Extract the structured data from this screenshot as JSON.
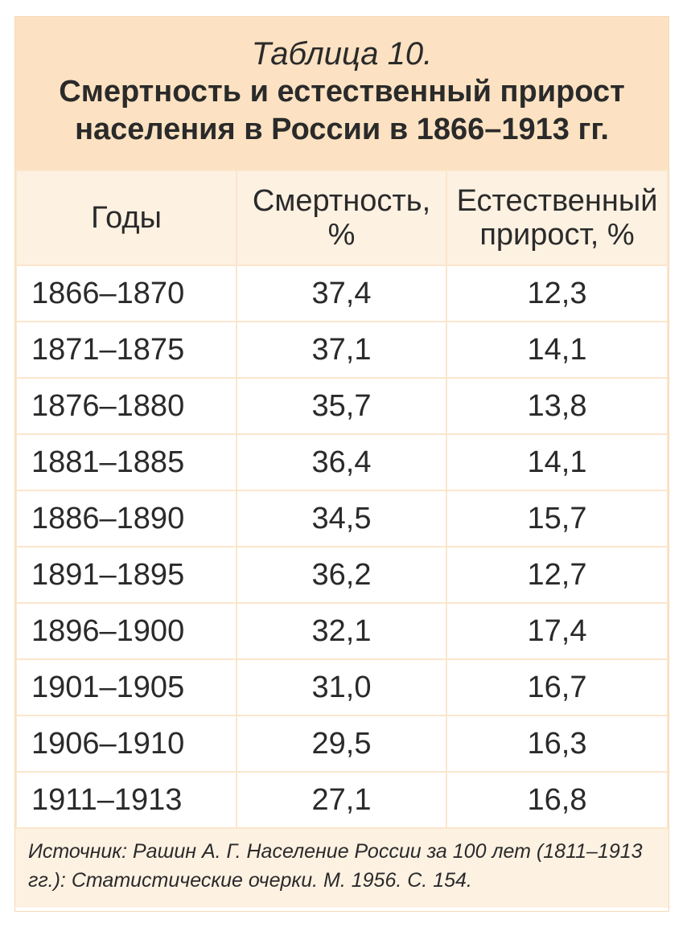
{
  "header": {
    "label": "Таблица 10.",
    "title_lines": [
      "Смертность и естественный прирост",
      "населения в России в 1866–1913 гг."
    ]
  },
  "table": {
    "columns": [
      [
        "Годы"
      ],
      [
        "Смертность,",
        "%"
      ],
      [
        "Естественный",
        "прирост, %"
      ]
    ],
    "rows": [
      [
        "1866–1870",
        "37,4",
        "12,3"
      ],
      [
        "1871–1875",
        "37,1",
        "14,1"
      ],
      [
        "1876–1880",
        "35,7",
        "13,8"
      ],
      [
        "1881–1885",
        "36,4",
        "14,1"
      ],
      [
        "1886–1890",
        "34,5",
        "15,7"
      ],
      [
        "1891–1895",
        "36,2",
        "12,7"
      ],
      [
        "1896–1900",
        "32,1",
        "17,4"
      ],
      [
        "1901–1905",
        "31,0",
        "16,7"
      ],
      [
        "1906–1910",
        "29,5",
        "16,3"
      ],
      [
        "1911–1913",
        "27,1",
        "16,8"
      ]
    ]
  },
  "footer": {
    "source": "Источник: Рашин А. Г. Население России за 100 лет (1811–1913 гг.): Статистические очерки. М. 1956. С. 154."
  }
}
